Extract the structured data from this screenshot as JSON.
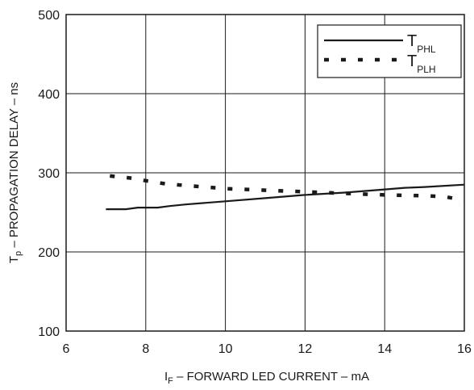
{
  "chart_data": {
    "type": "line",
    "xlabel": {
      "main": "I",
      "sub": "F",
      "rest": " – FORWARD LED CURRENT – mA"
    },
    "ylabel": {
      "main": "T",
      "sub": "p",
      "rest": " – PROPAGATION DELAY – ns"
    },
    "xlim": [
      6,
      16
    ],
    "ylim": [
      100,
      500
    ],
    "x_ticks": [
      6,
      8,
      10,
      12,
      14,
      16
    ],
    "y_ticks": [
      100,
      200,
      300,
      400,
      500
    ],
    "grid": true,
    "legend_position": "top-right",
    "series": [
      {
        "name_main": "T",
        "name_sub": "PHL",
        "style": "solid",
        "color": "#1a1a1a",
        "x": [
          7.0,
          7.5,
          7.8,
          8.3,
          8.6,
          9.0,
          10.0,
          11.0,
          12.0,
          13.0,
          14.0,
          14.5,
          15.0,
          16.0
        ],
        "y": [
          254,
          254,
          256,
          256,
          258,
          260,
          264,
          268,
          272,
          275,
          279,
          281,
          282,
          285
        ]
      },
      {
        "name_main": "T",
        "name_sub": "PLH",
        "style": "dotted",
        "color": "#1a1a1a",
        "x": [
          7.1,
          7.7,
          8.0,
          8.5,
          9.0,
          10.0,
          11.0,
          12.0,
          13.0,
          14.0,
          15.0,
          15.5,
          16.0
        ],
        "y": [
          296,
          293,
          290,
          286,
          284,
          280,
          278,
          276,
          274,
          272,
          271,
          270,
          265
        ]
      }
    ]
  }
}
